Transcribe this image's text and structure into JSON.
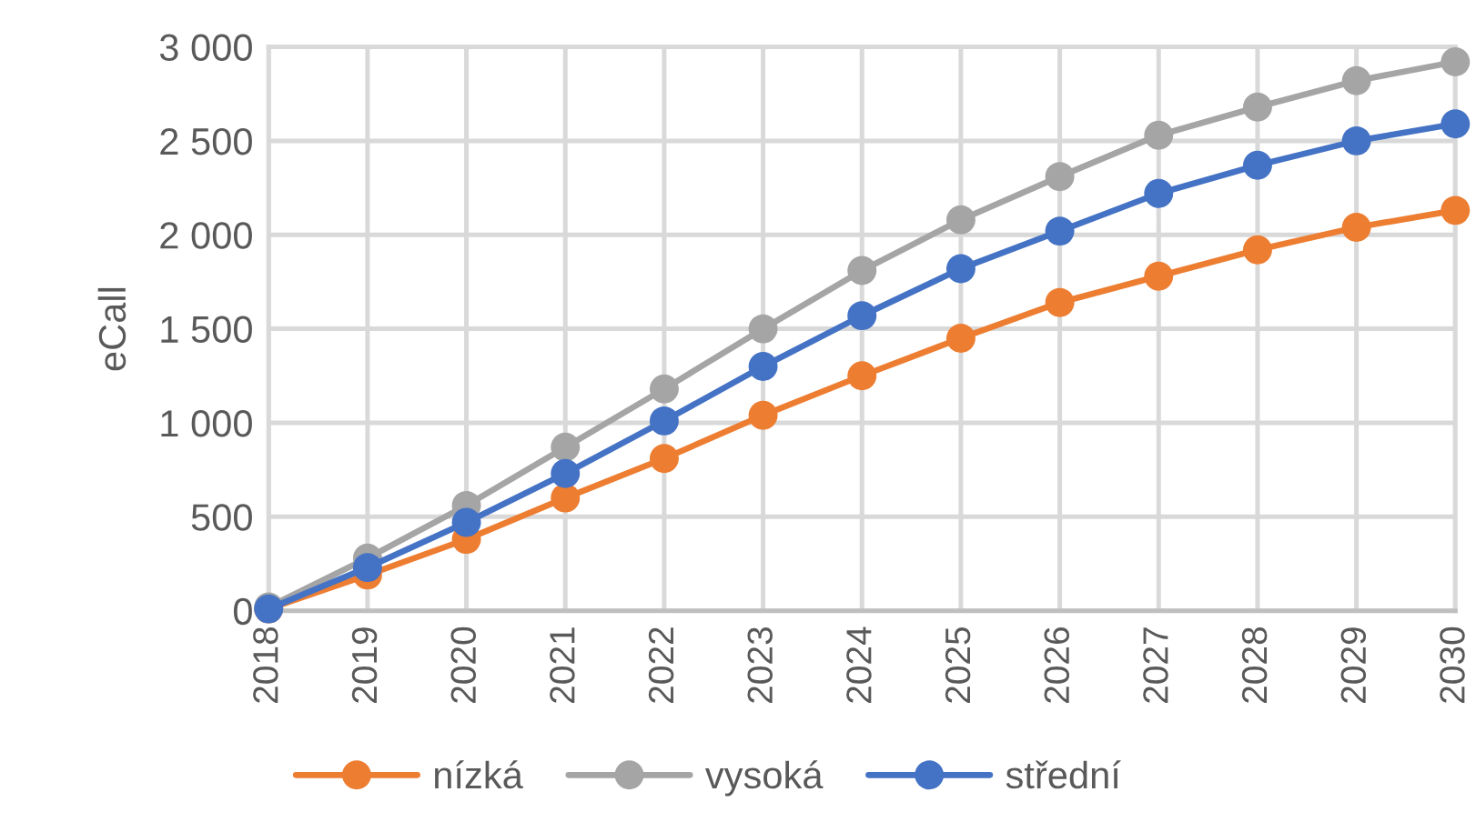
{
  "chart_data": {
    "type": "line",
    "ylabel": "eCall",
    "categories": [
      "2018",
      "2019",
      "2020",
      "2021",
      "2022",
      "2023",
      "2024",
      "2025",
      "2026",
      "2027",
      "2028",
      "2029",
      "2030"
    ],
    "series": [
      {
        "name": "nízká",
        "color": "#ed7d31",
        "values": [
          10,
          190,
          380,
          600,
          810,
          1040,
          1250,
          1450,
          1640,
          1780,
          1920,
          2040,
          2130
        ]
      },
      {
        "name": "vysoká",
        "color": "#a5a5a5",
        "values": [
          20,
          280,
          560,
          870,
          1180,
          1500,
          1810,
          2080,
          2310,
          2530,
          2680,
          2820,
          2920
        ]
      },
      {
        "name": "střední",
        "color": "#4472c4",
        "values": [
          10,
          230,
          470,
          730,
          1010,
          1300,
          1570,
          1820,
          2020,
          2220,
          2370,
          2500,
          2590
        ]
      }
    ],
    "ylim": [
      0,
      3000
    ],
    "yticks": [
      0,
      500,
      {
        "value": 1000,
        "label": "1 000"
      },
      {
        "value": 1500,
        "label": "1 500"
      },
      {
        "value": 2000,
        "label": "2 000"
      },
      {
        "value": 2500,
        "label": "2 500"
      },
      {
        "value": 3000,
        "label": "3 000"
      }
    ],
    "grid": true,
    "legend": "bottom",
    "marker": "circle",
    "line_style": "solid"
  }
}
